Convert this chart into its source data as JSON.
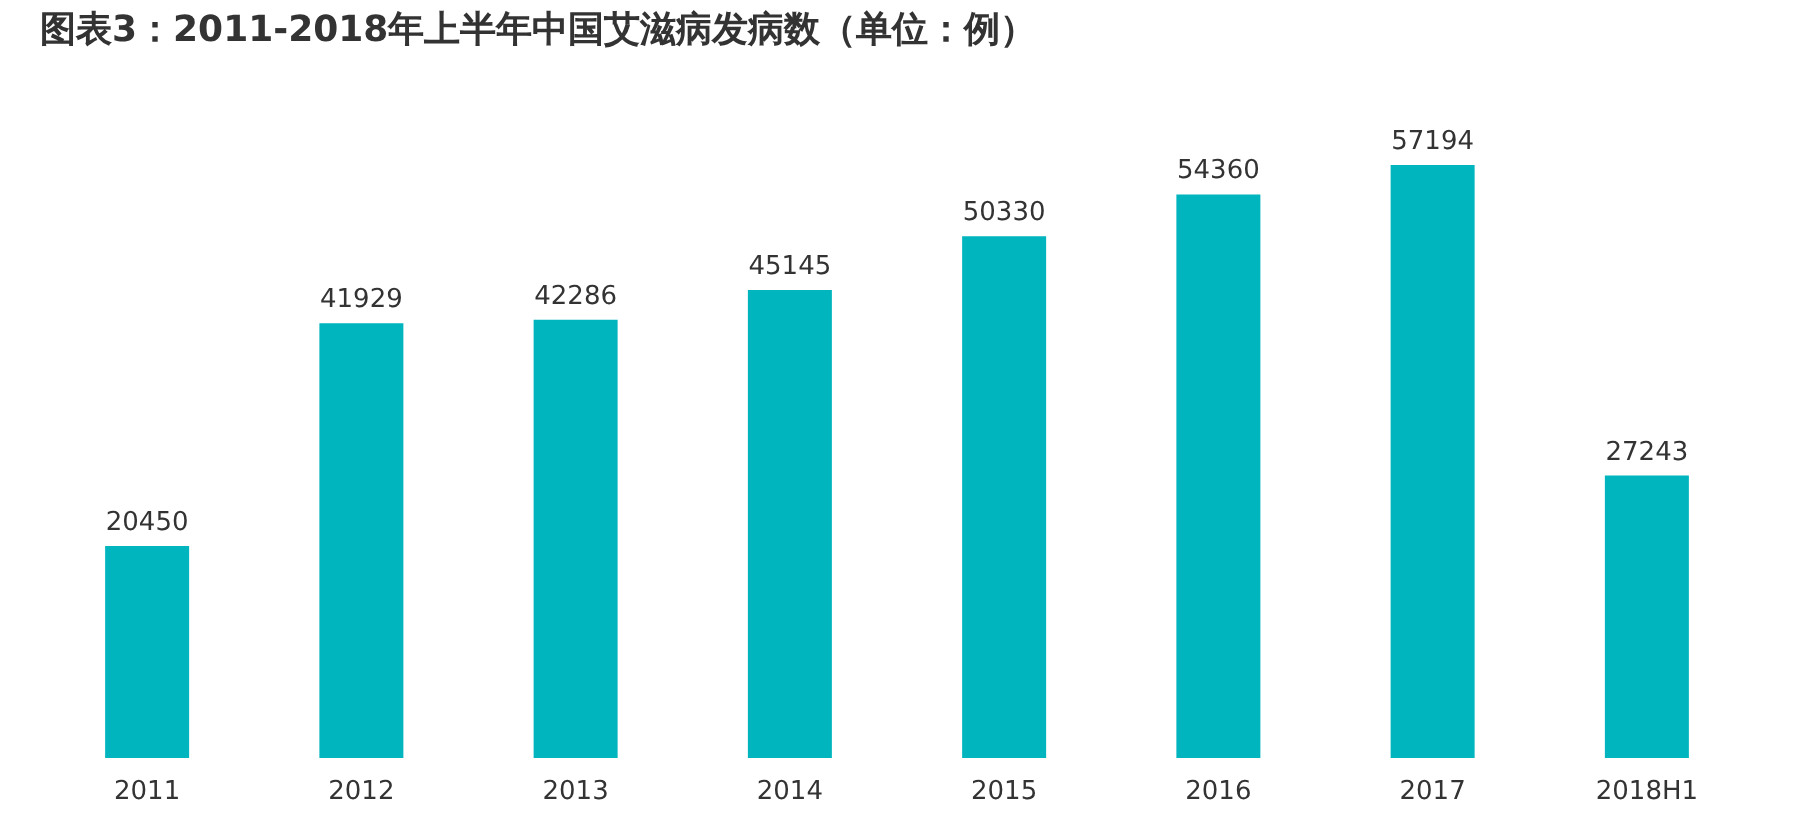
{
  "chart_data": {
    "type": "bar",
    "title": "图表3：2011-2018年上半年中国艾滋病发病数（单位：例）",
    "categories": [
      "2011",
      "2012",
      "2013",
      "2014",
      "2015",
      "2016",
      "2017",
      "2018H1"
    ],
    "values": [
      20450,
      41929,
      42286,
      45145,
      50330,
      54360,
      57194,
      27243
    ],
    "color": "#00b5bd",
    "data_labels": true,
    "grid": false
  }
}
